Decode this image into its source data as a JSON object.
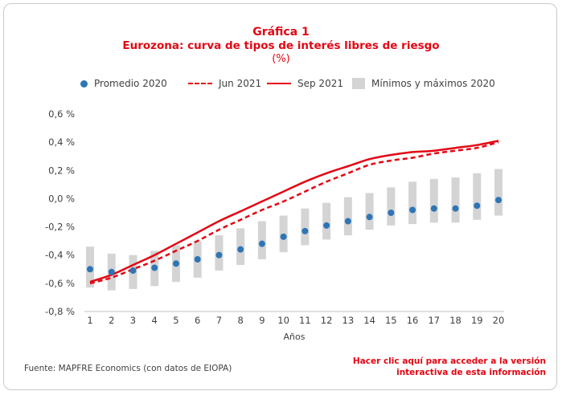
{
  "header": {
    "title_line1": "Gráfica 1",
    "title_line2": "Eurozona: curva de tipos de interés libres de riesgo",
    "title_line3": "(%)"
  },
  "legend": {
    "promedio": "Promedio 2020",
    "jun": "Jun 2021",
    "sep": "Sep 2021",
    "range": "Mínimos y máximos 2020"
  },
  "footer": {
    "source": "Fuente: MAPFRE Economics (con datos de EIOPA)",
    "link_line1": "Hacer clic aquí para acceder a la versión",
    "link_line2": "interactiva de esta información"
  },
  "chart_data": {
    "type": "line",
    "xlabel": "Años",
    "ylabel": "",
    "ylim": [
      -0.8,
      0.6
    ],
    "y_ticks": [
      0.6,
      0.4,
      0.2,
      0.0,
      -0.2,
      -0.4,
      -0.6,
      -0.8
    ],
    "y_tick_labels": [
      "0,6 %",
      "0,4 %",
      "0,2 %",
      "0,0 %",
      "-0,2 %",
      "-0,4 %",
      "-0,6 %",
      "-0,8 %"
    ],
    "x": [
      1,
      2,
      3,
      4,
      5,
      6,
      7,
      8,
      9,
      10,
      11,
      12,
      13,
      14,
      15,
      16,
      17,
      18,
      19,
      20
    ],
    "grid": false,
    "legend_position": "top",
    "colors": {
      "promedio": "#2e75b6",
      "curves": "#e30613",
      "range": "#d4d4d4",
      "axis": "#bfbfbf",
      "text": "#404040"
    },
    "series": [
      {
        "name": "Promedio 2020",
        "kind": "scatter",
        "values": [
          -0.5,
          -0.52,
          -0.51,
          -0.49,
          -0.46,
          -0.43,
          -0.4,
          -0.36,
          -0.32,
          -0.27,
          -0.23,
          -0.19,
          -0.16,
          -0.13,
          -0.1,
          -0.08,
          -0.07,
          -0.07,
          -0.05,
          -0.01
        ]
      },
      {
        "name": "Jun 2021",
        "kind": "dashed",
        "values": [
          -0.6,
          -0.56,
          -0.5,
          -0.44,
          -0.37,
          -0.3,
          -0.22,
          -0.15,
          -0.08,
          -0.02,
          0.05,
          0.12,
          0.18,
          0.24,
          0.27,
          0.29,
          0.32,
          0.34,
          0.36,
          0.4
        ]
      },
      {
        "name": "Sep 2021",
        "kind": "solid",
        "values": [
          -0.59,
          -0.54,
          -0.47,
          -0.4,
          -0.32,
          -0.24,
          -0.16,
          -0.09,
          -0.02,
          0.05,
          0.12,
          0.18,
          0.23,
          0.28,
          0.31,
          0.33,
          0.34,
          0.36,
          0.38,
          0.41
        ]
      },
      {
        "name": "Mínimos y máximos 2020",
        "kind": "range",
        "min": [
          -0.63,
          -0.65,
          -0.64,
          -0.62,
          -0.59,
          -0.56,
          -0.51,
          -0.47,
          -0.43,
          -0.38,
          -0.33,
          -0.29,
          -0.26,
          -0.22,
          -0.19,
          -0.18,
          -0.17,
          -0.17,
          -0.15,
          -0.12
        ],
        "max": [
          -0.34,
          -0.39,
          -0.4,
          -0.37,
          -0.33,
          -0.3,
          -0.26,
          -0.21,
          -0.16,
          -0.12,
          -0.07,
          -0.03,
          0.01,
          0.04,
          0.08,
          0.12,
          0.14,
          0.15,
          0.18,
          0.21
        ]
      }
    ]
  }
}
